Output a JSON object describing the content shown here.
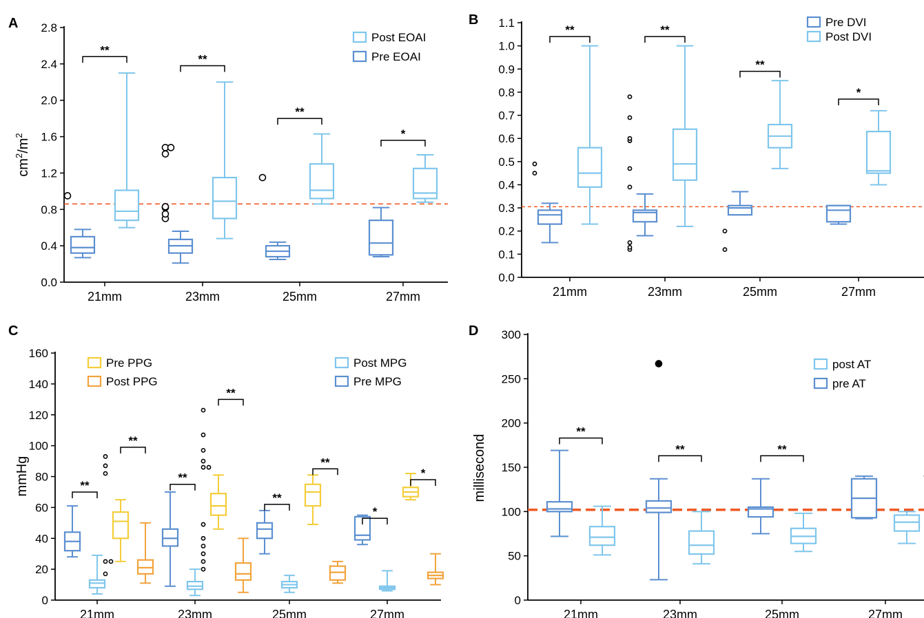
{
  "colors": {
    "dark_blue": "#5b8fd1",
    "light_blue": "#7fc6ec",
    "yellow": "#f4cd3a",
    "orange": "#f2a33c",
    "reference": "#ef5a24"
  },
  "chart_data": [
    {
      "panel": "A",
      "type": "box",
      "ylabel": "cm²/m²",
      "ylim": [
        0,
        2.8
      ],
      "yticks": [
        "0.0",
        "0.4",
        "0.8",
        "1.2",
        "1.6",
        "2.0",
        "2.4",
        "2.8"
      ],
      "categories": [
        "21mm",
        "23mm",
        "25mm",
        "27mm"
      ],
      "reference_line": 0.86,
      "legend": [
        "Post EOAI",
        "Pre EOAI"
      ],
      "series": [
        {
          "name": "Pre EOAI",
          "color": "dark_blue",
          "boxes": [
            {
              "min": 0.27,
              "q1": 0.32,
              "median": 0.38,
              "q3": 0.5,
              "max": 0.58,
              "outliers": [
                0.95
              ]
            },
            {
              "min": 0.21,
              "q1": 0.32,
              "median": 0.4,
              "q3": 0.47,
              "max": 0.56,
              "outliers": [
                0.7,
                0.75,
                0.82,
                0.83,
                1.41,
                1.48,
                1.48
              ]
            },
            {
              "min": 0.25,
              "q1": 0.28,
              "median": 0.34,
              "q3": 0.4,
              "max": 0.44,
              "outliers": [
                1.15
              ]
            },
            {
              "min": 0.28,
              "q1": 0.3,
              "median": 0.43,
              "q3": 0.68,
              "max": 0.82,
              "outliers": []
            }
          ]
        },
        {
          "name": "Post EOAI",
          "color": "light_blue",
          "boxes": [
            {
              "min": 0.6,
              "q1": 0.68,
              "median": 0.78,
              "q3": 1.01,
              "max": 2.3,
              "outliers": []
            },
            {
              "min": 0.48,
              "q1": 0.7,
              "median": 0.89,
              "q3": 1.15,
              "max": 2.2,
              "outliers": []
            },
            {
              "min": 0.86,
              "q1": 0.92,
              "median": 1.01,
              "q3": 1.3,
              "max": 1.63,
              "outliers": []
            },
            {
              "min": 0.88,
              "q1": 0.92,
              "median": 0.98,
              "q3": 1.25,
              "max": 1.4,
              "outliers": []
            }
          ]
        }
      ],
      "significance": [
        {
          "category": 0,
          "label": "**",
          "y": 2.48
        },
        {
          "category": 1,
          "label": "**",
          "y": 2.38
        },
        {
          "category": 2,
          "label": "**",
          "y": 1.8
        },
        {
          "category": 3,
          "label": "*",
          "y": 1.56
        }
      ]
    },
    {
      "panel": "B",
      "type": "box",
      "ylabel": "",
      "ylim": [
        0,
        1.1
      ],
      "yticks": [
        "0.0",
        "0.1",
        "0.2",
        "0.3",
        "0.4",
        "0.5",
        "0.6",
        "0.7",
        "0.8",
        "0.9",
        "1.0",
        "1.1"
      ],
      "categories": [
        "21mm",
        "23mm",
        "25mm",
        "27mm"
      ],
      "reference_line": 0.305,
      "legend": [
        "Pre DVI",
        "Post DVI"
      ],
      "series": [
        {
          "name": "Pre DVI",
          "color": "dark_blue",
          "boxes": [
            {
              "min": 0.15,
              "q1": 0.23,
              "median": 0.27,
              "q3": 0.29,
              "max": 0.32,
              "outliers": [
                0.45,
                0.49
              ]
            },
            {
              "min": 0.18,
              "q1": 0.24,
              "median": 0.28,
              "q3": 0.29,
              "max": 0.36,
              "outliers": [
                0.12,
                0.13,
                0.15,
                0.39,
                0.47,
                0.59,
                0.6,
                0.69,
                0.78
              ]
            },
            {
              "min": 0.27,
              "q1": 0.27,
              "median": 0.3,
              "q3": 0.31,
              "max": 0.37,
              "outliers": [
                0.12,
                0.2
              ]
            },
            {
              "min": 0.23,
              "q1": 0.24,
              "median": 0.29,
              "q3": 0.31,
              "max": 0.31,
              "outliers": []
            }
          ]
        },
        {
          "name": "Post DVI",
          "color": "light_blue",
          "boxes": [
            {
              "min": 0.23,
              "q1": 0.39,
              "median": 0.45,
              "q3": 0.56,
              "max": 1.0,
              "outliers": []
            },
            {
              "min": 0.22,
              "q1": 0.42,
              "median": 0.49,
              "q3": 0.64,
              "max": 1.0,
              "outliers": []
            },
            {
              "min": 0.47,
              "q1": 0.56,
              "median": 0.61,
              "q3": 0.66,
              "max": 0.85,
              "outliers": []
            },
            {
              "min": 0.4,
              "q1": 0.45,
              "median": 0.46,
              "q3": 0.63,
              "max": 0.72,
              "outliers": []
            }
          ]
        }
      ],
      "significance": [
        {
          "category": 0,
          "label": "**",
          "y": 1.04
        },
        {
          "category": 1,
          "label": "**",
          "y": 1.04
        },
        {
          "category": 2,
          "label": "**",
          "y": 0.89
        },
        {
          "category": 3,
          "label": "*",
          "y": 0.77
        }
      ]
    },
    {
      "panel": "C",
      "type": "box",
      "ylabel": "mmHg",
      "ylim": [
        0,
        160
      ],
      "yticks": [
        "0",
        "20",
        "40",
        "60",
        "80",
        "100",
        "120",
        "140",
        "160"
      ],
      "categories": [
        "21mm",
        "23mm",
        "25mm",
        "27mm"
      ],
      "legend": [
        "Pre PPG",
        "Post PPG",
        "Post MPG",
        "Pre MPG"
      ],
      "series": [
        {
          "name": "Pre MPG",
          "color": "dark_blue",
          "boxes": [
            {
              "min": 28,
              "q1": 32,
              "median": 38,
              "q3": 44,
              "max": 61,
              "outliers": []
            },
            {
              "min": 9,
              "q1": 35,
              "median": 40,
              "q3": 46,
              "max": 70,
              "outliers": []
            },
            {
              "min": 30,
              "q1": 40,
              "median": 46,
              "q3": 50,
              "max": 58,
              "outliers": []
            },
            {
              "min": 36,
              "q1": 39,
              "median": 42,
              "q3": 54,
              "max": 55,
              "outliers": []
            }
          ]
        },
        {
          "name": "Post MPG",
          "color": "light_blue",
          "boxes": [
            {
              "min": 4,
              "q1": 8,
              "median": 11,
              "q3": 13,
              "max": 29,
              "outliers": []
            },
            {
              "min": 3,
              "q1": 7,
              "median": 9,
              "q3": 12,
              "max": 20,
              "outliers": []
            },
            {
              "min": 5,
              "q1": 8,
              "median": 10,
              "q3": 12,
              "max": 16,
              "outliers": []
            },
            {
              "min": 6,
              "q1": 7,
              "median": 8,
              "q3": 9,
              "max": 19,
              "outliers": []
            }
          ]
        },
        {
          "name": "Pre PPG",
          "color": "yellow",
          "boxes": [
            {
              "min": 25,
              "q1": 40,
              "median": 51,
              "q3": 57,
              "max": 65,
              "outliers": [
                17,
                25,
                25,
                82,
                87,
                93
              ]
            },
            {
              "min": 46,
              "q1": 55,
              "median": 61,
              "q3": 69,
              "max": 81,
              "outliers": [
                20,
                25,
                30,
                35,
                40,
                49,
                86,
                86,
                90,
                97,
                107,
                123
              ]
            },
            {
              "min": 49,
              "q1": 61,
              "median": 70,
              "q3": 75,
              "max": 81,
              "outliers": []
            },
            {
              "min": 65,
              "q1": 67,
              "median": 70,
              "q3": 73,
              "max": 82,
              "outliers": []
            }
          ]
        },
        {
          "name": "Post PPG",
          "color": "orange",
          "boxes": [
            {
              "min": 11,
              "q1": 17,
              "median": 21,
              "q3": 26,
              "max": 50,
              "outliers": []
            },
            {
              "min": 5,
              "q1": 13,
              "median": 17,
              "q3": 24,
              "max": 40,
              "outliers": []
            },
            {
              "min": 11,
              "q1": 13,
              "median": 18,
              "q3": 22,
              "max": 25,
              "outliers": []
            },
            {
              "min": 10,
              "q1": 14,
              "median": 16,
              "q3": 18,
              "max": 30,
              "outliers": []
            }
          ]
        }
      ],
      "significance": [
        {
          "category": 0,
          "pair": "MPG",
          "label": "**",
          "y": 70
        },
        {
          "category": 0,
          "pair": "PPG",
          "label": "**",
          "y": 99
        },
        {
          "category": 1,
          "pair": "MPG",
          "label": "**",
          "y": 75
        },
        {
          "category": 1,
          "pair": "PPG",
          "label": "**",
          "y": 130
        },
        {
          "category": 2,
          "pair": "MPG",
          "label": "**",
          "y": 62
        },
        {
          "category": 2,
          "pair": "PPG",
          "label": "**",
          "y": 85
        },
        {
          "category": 3,
          "pair": "MPG",
          "label": "*",
          "y": 53
        },
        {
          "category": 3,
          "pair": "PPG",
          "label": "*",
          "y": 78
        }
      ]
    },
    {
      "panel": "D",
      "type": "box",
      "ylabel": "millisecond",
      "ylim": [
        0,
        300
      ],
      "yticks": [
        "0",
        "50",
        "100",
        "150",
        "200",
        "250",
        "300"
      ],
      "categories": [
        "21mm",
        "23mm",
        "25mm",
        "27mm"
      ],
      "reference_line": 102,
      "legend": [
        "post AT",
        "pre AT"
      ],
      "series": [
        {
          "name": "pre AT",
          "color": "dark_blue",
          "boxes": [
            {
              "min": 72,
              "q1": 100,
              "median": 103,
              "q3": 111,
              "max": 169,
              "outliers": []
            },
            {
              "min": 23,
              "q1": 99,
              "median": 104,
              "q3": 112,
              "max": 137,
              "outliers": [
                267
              ]
            },
            {
              "min": 75,
              "q1": 94,
              "median": 103,
              "q3": 105,
              "max": 137,
              "outliers": []
            },
            {
              "min": 92,
              "q1": 93,
              "median": 115,
              "q3": 137,
              "max": 140,
              "outliers": []
            }
          ]
        },
        {
          "name": "post AT",
          "color": "light_blue",
          "boxes": [
            {
              "min": 51,
              "q1": 62,
              "median": 71,
              "q3": 83,
              "max": 106,
              "outliers": []
            },
            {
              "min": 41,
              "q1": 52,
              "median": 62,
              "q3": 78,
              "max": 100,
              "outliers": []
            },
            {
              "min": 55,
              "q1": 64,
              "median": 72,
              "q3": 81,
              "max": 98,
              "outliers": []
            },
            {
              "min": 64,
              "q1": 78,
              "median": 88,
              "q3": 96,
              "max": 100,
              "outliers": [
                140
              ]
            }
          ]
        }
      ],
      "significance": [
        {
          "category": 0,
          "label": "**",
          "y": 183
        },
        {
          "category": 1,
          "label": "**",
          "y": 163
        },
        {
          "category": 2,
          "label": "**",
          "y": 163
        }
      ]
    }
  ]
}
